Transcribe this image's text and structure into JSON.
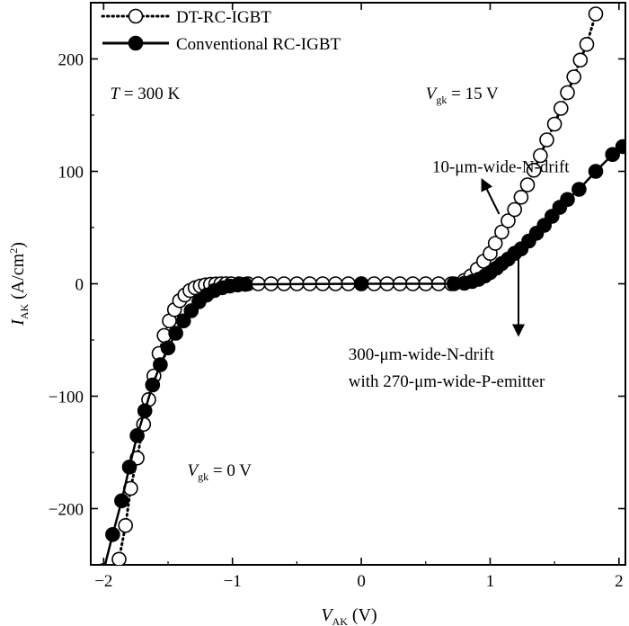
{
  "chart_data": {
    "type": "scatter",
    "xlabel": {
      "main": "V",
      "sub": "AK",
      "unit": " (V)"
    },
    "ylabel": {
      "main": "I",
      "sub": "AK",
      "unit": " (A/cm",
      "sup": "2",
      "close": ")"
    },
    "xlim": [
      -2.1,
      2.05
    ],
    "ylim": [
      -250,
      250
    ],
    "x_ticks": [
      -2,
      -1,
      0,
      1,
      2
    ],
    "y_ticks": [
      -200,
      -100,
      0,
      100,
      200
    ],
    "x_tick_labels": [
      "−2",
      "−1",
      "0",
      "1",
      "2"
    ],
    "y_tick_labels": [
      "−200",
      "−100",
      "0",
      "100",
      "200"
    ],
    "legend": {
      "position": "top-left"
    },
    "series": [
      {
        "name": "DT-RC-IGBT",
        "marker": "open-circle",
        "line": "dotted",
        "color": "#000000",
        "x": [
          -1.88,
          -1.83,
          -1.79,
          -1.74,
          -1.69,
          -1.65,
          -1.61,
          -1.57,
          -1.53,
          -1.49,
          -1.45,
          -1.41,
          -1.37,
          -1.33,
          -1.29,
          -1.25,
          -1.21,
          -1.17,
          -1.13,
          -1.09,
          -1.05,
          -1.01,
          -0.95,
          -0.88,
          -0.8,
          -0.7,
          -0.6,
          -0.5,
          -0.4,
          -0.3,
          -0.2,
          -0.1,
          0.0,
          0.1,
          0.2,
          0.3,
          0.4,
          0.5,
          0.6,
          0.7,
          0.8,
          0.85,
          0.9,
          0.95,
          1.0,
          1.04,
          1.09,
          1.14,
          1.19,
          1.24,
          1.29,
          1.34,
          1.39,
          1.44,
          1.5,
          1.55,
          1.6,
          1.65,
          1.7,
          1.75,
          1.82
        ],
        "y": [
          -245,
          -215,
          -182,
          -155,
          -125,
          -103,
          -82,
          -62,
          -46,
          -33,
          -23,
          -15,
          -10,
          -6,
          -3.5,
          -2,
          -1,
          -0.5,
          -0.2,
          0,
          0,
          0,
          0,
          0,
          0,
          0,
          0,
          0,
          0,
          0,
          0,
          0,
          0,
          0,
          0,
          0,
          0,
          0,
          0,
          0,
          3,
          7,
          13,
          20,
          27,
          36,
          46,
          56,
          66,
          77,
          88,
          101,
          114,
          128,
          142,
          156,
          170,
          184,
          199,
          213,
          240
        ]
      },
      {
        "name": "Conventional RC-IGBT",
        "marker": "filled-circle",
        "line": "solid",
        "color": "#000000",
        "x": [
          -2.0,
          -1.93,
          -1.86,
          -1.8,
          -1.74,
          -1.68,
          -1.62,
          -1.56,
          -1.5,
          -1.44,
          -1.38,
          -1.32,
          -1.26,
          -1.2,
          -1.14,
          -1.08,
          -1.02,
          -0.96,
          -0.9,
          0.0,
          0.72,
          0.8,
          0.86,
          0.91,
          0.96,
          1.0,
          1.05,
          1.09,
          1.14,
          1.19,
          1.24,
          1.3,
          1.36,
          1.42,
          1.48,
          1.54,
          1.6,
          1.69,
          1.82,
          1.95,
          2.03
        ],
        "y": [
          -255,
          -223,
          -193,
          -163,
          -135,
          -113,
          -90,
          -72,
          -57,
          -44,
          -33,
          -24,
          -16,
          -10,
          -6,
          -3.5,
          -2,
          -1,
          -0.5,
          0,
          0,
          0.5,
          2,
          4,
          7,
          10,
          14,
          18,
          22,
          27,
          31,
          38,
          45,
          52,
          60,
          68,
          75,
          84,
          100,
          115,
          122
        ]
      }
    ],
    "annotations": {
      "temperature": {
        "symbol": "T",
        "rest": " = 300 K",
        "x": -1.95,
        "y": 170
      },
      "vgk_on": {
        "main": "V",
        "sub": "gk",
        "rest": " = 15 V",
        "x": 0.5,
        "y": 170
      },
      "vgk_off": {
        "main": "V",
        "sub": "gk",
        "rest": " = 0 V",
        "x": -1.35,
        "y": -165
      },
      "narrow_drift": {
        "text": "10-μm-wide-N-drift",
        "x": 0.55,
        "y": 105,
        "arrow_from": [
          1.07,
          62
        ],
        "arrow_to": [
          0.94,
          92
        ]
      },
      "wide_drift": {
        "line1": "300-μm-wide-N-drift",
        "line2": "with 270-μm-wide-P-emitter",
        "x": -0.1,
        "y": -62,
        "arrow_from": [
          1.22,
          25
        ],
        "arrow_to": [
          1.22,
          -45
        ]
      }
    }
  }
}
